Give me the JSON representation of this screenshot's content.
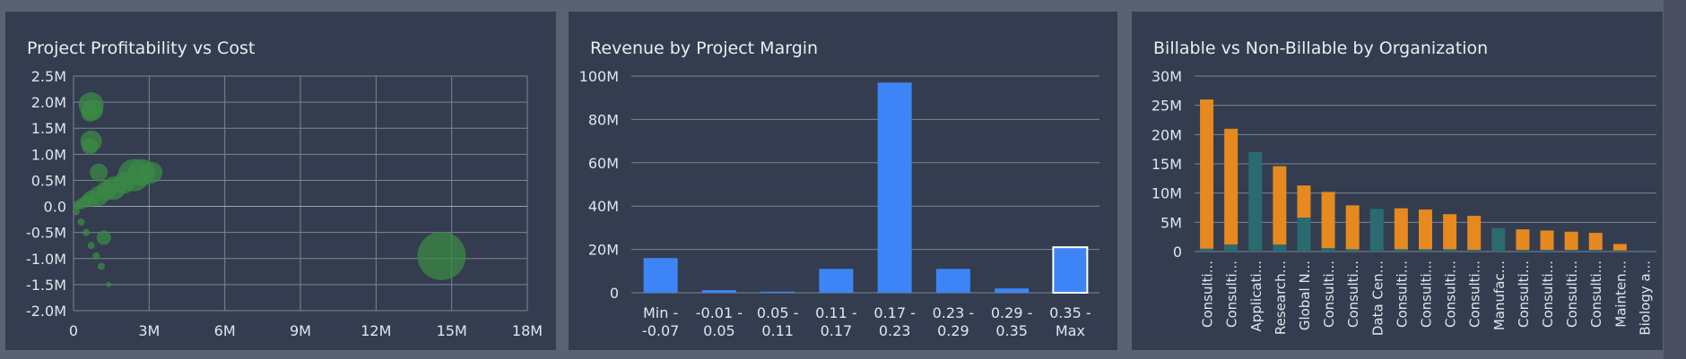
{
  "chart_data": [
    {
      "type": "scatter",
      "title": "Project Profitability vs Cost",
      "xlabel": "",
      "ylabel": "",
      "x_ticks": [
        "0",
        "3M",
        "6M",
        "9M",
        "12M",
        "15M",
        "18M"
      ],
      "y_ticks": [
        "2.5M",
        "2.0M",
        "1.5M",
        "1.0M",
        "0.5M",
        "0.0",
        "-0.5M",
        "-1.0M",
        "-1.5M",
        "-2.0M"
      ],
      "xlim": [
        0,
        18000000
      ],
      "ylim": [
        -2000000,
        2500000
      ],
      "grid": true,
      "color": "#3b8a46",
      "points": [
        {
          "x": 700000,
          "y": 1950000,
          "size": 14
        },
        {
          "x": 750000,
          "y": 1850000,
          "size": 12
        },
        {
          "x": 650000,
          "y": 1800000,
          "size": 10
        },
        {
          "x": 700000,
          "y": 1250000,
          "size": 12
        },
        {
          "x": 650000,
          "y": 1150000,
          "size": 9
        },
        {
          "x": 1000000,
          "y": 650000,
          "size": 10
        },
        {
          "x": 2400000,
          "y": 600000,
          "size": 18
        },
        {
          "x": 2700000,
          "y": 650000,
          "size": 15
        },
        {
          "x": 3100000,
          "y": 650000,
          "size": 12
        },
        {
          "x": 2000000,
          "y": 450000,
          "size": 12
        },
        {
          "x": 1600000,
          "y": 350000,
          "size": 13
        },
        {
          "x": 1300000,
          "y": 300000,
          "size": 11
        },
        {
          "x": 1000000,
          "y": 200000,
          "size": 11
        },
        {
          "x": 700000,
          "y": 150000,
          "size": 9
        },
        {
          "x": 500000,
          "y": 100000,
          "size": 7
        },
        {
          "x": 300000,
          "y": 50000,
          "size": 6
        },
        {
          "x": 150000,
          "y": 20000,
          "size": 5
        },
        {
          "x": 100000,
          "y": -100000,
          "size": 4
        },
        {
          "x": 300000,
          "y": -300000,
          "size": 4
        },
        {
          "x": 500000,
          "y": -500000,
          "size": 4
        },
        {
          "x": 700000,
          "y": -750000,
          "size": 4
        },
        {
          "x": 900000,
          "y": -950000,
          "size": 4
        },
        {
          "x": 1100000,
          "y": -1150000,
          "size": 4
        },
        {
          "x": 1400000,
          "y": -1500000,
          "size": 3
        },
        {
          "x": 1200000,
          "y": -600000,
          "size": 8
        },
        {
          "x": 14600000,
          "y": -950000,
          "size": 27
        }
      ]
    },
    {
      "type": "bar",
      "title": "Revenue by Project Margin",
      "xlabel": "",
      "ylabel": "",
      "categories": [
        [
          "Min -",
          "-0.07"
        ],
        [
          "-0.01 -",
          "0.05"
        ],
        [
          "0.05 -",
          "0.11"
        ],
        [
          "0.11 -",
          "0.17"
        ],
        [
          "0.17 -",
          "0.23"
        ],
        [
          "0.23 -",
          "0.29"
        ],
        [
          "0.29 -",
          "0.35"
        ],
        [
          "0.35 -",
          "Max"
        ]
      ],
      "values": [
        16000000,
        1200000,
        500000,
        11000000,
        97000000,
        11000000,
        2000000,
        21000000
      ],
      "highlighted_index": 7,
      "y_ticks": [
        "100M",
        "80M",
        "60M",
        "40M",
        "20M",
        "0"
      ],
      "ylim": [
        0,
        100000000
      ],
      "grid": true,
      "color": "#3d85f7"
    },
    {
      "type": "bar",
      "title": "Billable vs Non-Billable by Organization",
      "xlabel": "",
      "ylabel": "",
      "categories": [
        "Consulti...",
        "Consulti...",
        "Applicati...",
        "Research...",
        "Global N...",
        "Consulti...",
        "Consulti...",
        "Data Cen...",
        "Consulti...",
        "Consulti...",
        "Consulti...",
        "Consulti...",
        "Manufac...",
        "Consulti...",
        "Consulti...",
        "Consulti...",
        "Consulti...",
        "Mainten...",
        "Biology a..."
      ],
      "series": [
        {
          "name": "",
          "color": "#2b6a70",
          "values": [
            500000,
            1200000,
            17000000,
            1200000,
            5800000,
            600000,
            400000,
            7300000,
            400000,
            400000,
            400000,
            300000,
            4000000,
            300000,
            300000,
            300000,
            300000,
            200000,
            200000
          ]
        },
        {
          "name": "",
          "color": "#e6891e",
          "values": [
            25500000,
            19800000,
            0,
            13400000,
            5500000,
            9600000,
            7500000,
            0,
            7000000,
            6800000,
            6000000,
            5800000,
            0,
            3500000,
            3300000,
            3100000,
            2900000,
            1100000,
            0
          ]
        }
      ],
      "y_ticks": [
        "30M",
        "25M",
        "20M",
        "15M",
        "10M",
        "5M",
        "0"
      ],
      "ylim": [
        0,
        30000000
      ],
      "grid": true
    }
  ]
}
